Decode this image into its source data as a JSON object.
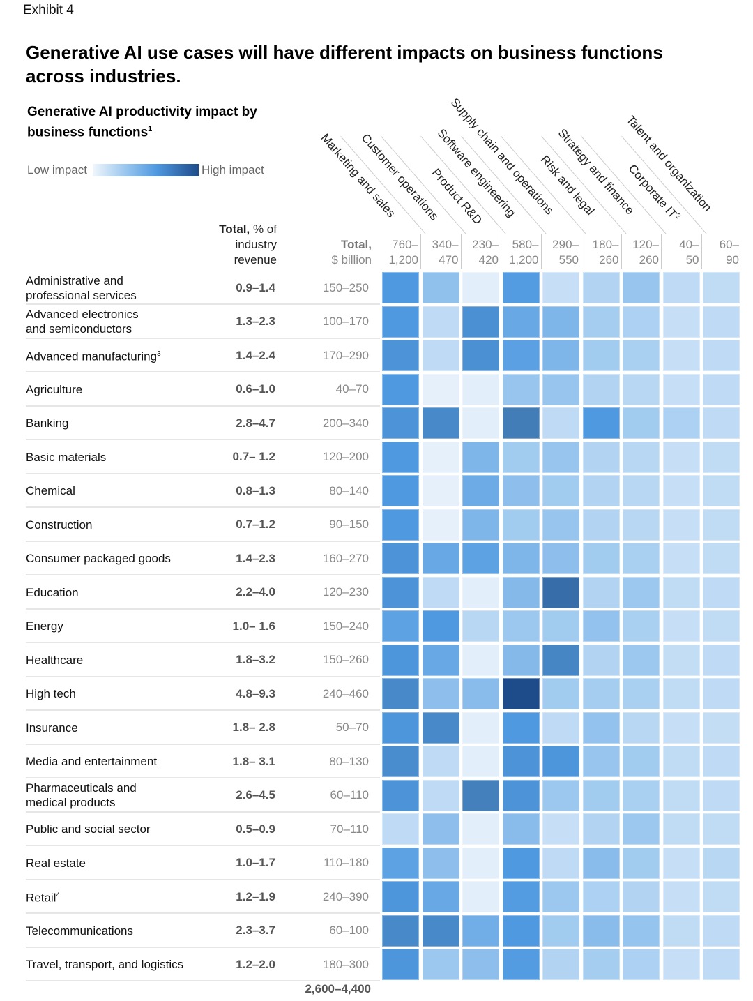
{
  "header": {
    "exhibit_label": "Exhibit 4",
    "title": "Generative AI use cases will have different impacts on business functions across industries.",
    "subtitle": "Generative AI productivity impact by business functions",
    "subtitle_footnote": "1"
  },
  "legend": {
    "low_label": "Low impact",
    "high_label": "High impact",
    "colors": [
      "#f0f6fc",
      "#9cc8ef",
      "#4f99e0",
      "#1e4c8a"
    ]
  },
  "columns_header": {
    "pct_bold": "Total,",
    "pct_rest": " % of",
    "pct_line2": "industry",
    "pct_line3": "revenue",
    "bil_bold": "Total,",
    "bil_line2": "$ billion"
  },
  "chart_data": {
    "type": "heatmap",
    "title": "Generative AI productivity impact by business functions",
    "color_scale": {
      "low": "Low impact",
      "high": "High impact"
    },
    "functions": [
      {
        "name": "Marketing and sales",
        "footnote": "",
        "total_low": "760–",
        "total_high": "1,200"
      },
      {
        "name": "Customer operations",
        "footnote": "",
        "total_low": "340–",
        "total_high": "470"
      },
      {
        "name": "Product R&D",
        "footnote": "",
        "total_low": "230–",
        "total_high": "420"
      },
      {
        "name": "Software engineering",
        "footnote": "",
        "total_low": "580–",
        "total_high": "1,200"
      },
      {
        "name": "Supply chain and operations",
        "footnote": "",
        "total_low": "290–",
        "total_high": "550"
      },
      {
        "name": "Risk and legal",
        "footnote": "",
        "total_low": "180–",
        "total_high": "260"
      },
      {
        "name": "Strategy and finance",
        "footnote": "",
        "total_low": "120–",
        "total_high": "260"
      },
      {
        "name": "Corporate IT",
        "footnote": "2",
        "total_low": "40–",
        "total_high": "50"
      },
      {
        "name": "Talent and organization",
        "footnote": "",
        "total_low": "60–",
        "total_high": "90"
      }
    ],
    "industries": [
      {
        "name": "Administrative and professional services",
        "lines": [
          "Administrative and",
          "professional services"
        ],
        "footnote": "",
        "pct_revenue": "0.9–1.4",
        "total_billion": "150–250",
        "impact": [
          0.62,
          0.35,
          0.05,
          0.6,
          0.15,
          0.22,
          0.32,
          0.18,
          0.17
        ]
      },
      {
        "name": "Advanced electronics and semiconductors",
        "lines": [
          "Advanced electronics",
          "and semiconductors"
        ],
        "footnote": "",
        "pct_revenue": "1.3–2.3",
        "total_billion": "100–170",
        "impact": [
          0.62,
          0.18,
          0.68,
          0.52,
          0.42,
          0.27,
          0.24,
          0.15,
          0.18
        ]
      },
      {
        "name": "Advanced manufacturing",
        "lines": [
          "Advanced manufacturing"
        ],
        "footnote": "3",
        "pct_revenue": "1.4–2.4",
        "total_billion": "170–290",
        "impact": [
          0.66,
          0.18,
          0.68,
          0.57,
          0.42,
          0.28,
          0.25,
          0.15,
          0.18
        ]
      },
      {
        "name": "Agriculture",
        "lines": [
          "Agriculture"
        ],
        "footnote": "",
        "pct_revenue": "0.6–1.0",
        "total_billion": "40–70",
        "impact": [
          0.62,
          0.04,
          0.05,
          0.32,
          0.32,
          0.22,
          0.2,
          0.15,
          0.18
        ]
      },
      {
        "name": "Banking",
        "lines": [
          "Banking"
        ],
        "footnote": "",
        "pct_revenue": "2.8–4.7",
        "total_billion": "200–340",
        "impact": [
          0.66,
          0.72,
          0.05,
          0.8,
          0.18,
          0.62,
          0.28,
          0.24,
          0.18
        ]
      },
      {
        "name": "Basic materials",
        "lines": [
          "Basic materials"
        ],
        "footnote": "",
        "pct_revenue": "0.7– 1.2",
        "total_billion": "120–200",
        "impact": [
          0.62,
          0.04,
          0.42,
          0.28,
          0.32,
          0.22,
          0.2,
          0.15,
          0.17
        ]
      },
      {
        "name": "Chemical",
        "lines": [
          "Chemical"
        ],
        "footnote": "",
        "pct_revenue": "0.8–1.3",
        "total_billion": "80–140",
        "impact": [
          0.62,
          0.04,
          0.5,
          0.36,
          0.28,
          0.22,
          0.2,
          0.15,
          0.17
        ]
      },
      {
        "name": "Construction",
        "lines": [
          "Construction"
        ],
        "footnote": "",
        "pct_revenue": "0.7–1.2",
        "total_billion": "90–150",
        "impact": [
          0.62,
          0.04,
          0.42,
          0.28,
          0.32,
          0.22,
          0.2,
          0.15,
          0.17
        ]
      },
      {
        "name": "Consumer packaged goods",
        "lines": [
          "Consumer packaged goods"
        ],
        "footnote": "",
        "pct_revenue": "1.4–2.3",
        "total_billion": "160–270",
        "impact": [
          0.66,
          0.52,
          0.56,
          0.42,
          0.36,
          0.28,
          0.25,
          0.15,
          0.17
        ]
      },
      {
        "name": "Education",
        "lines": [
          "Education"
        ],
        "footnote": "",
        "pct_revenue": "2.2–4.0",
        "total_billion": "120–230",
        "impact": [
          0.66,
          0.18,
          0.05,
          0.4,
          0.86,
          0.22,
          0.3,
          0.17,
          0.18
        ]
      },
      {
        "name": "Energy",
        "lines": [
          "Energy"
        ],
        "footnote": "",
        "pct_revenue": "1.0– 1.6",
        "total_billion": "150–240",
        "impact": [
          0.56,
          0.62,
          0.2,
          0.3,
          0.28,
          0.34,
          0.25,
          0.15,
          0.17
        ]
      },
      {
        "name": "Healthcare",
        "lines": [
          "Healthcare"
        ],
        "footnote": "",
        "pct_revenue": "1.8–3.2",
        "total_billion": "150–260",
        "impact": [
          0.64,
          0.52,
          0.05,
          0.4,
          0.74,
          0.22,
          0.3,
          0.16,
          0.18
        ]
      },
      {
        "name": "High tech",
        "lines": [
          "High tech"
        ],
        "footnote": "",
        "pct_revenue": "4.8–9.3",
        "total_billion": "240–460",
        "impact": [
          0.72,
          0.36,
          0.38,
          1.0,
          0.28,
          0.27,
          0.25,
          0.17,
          0.18
        ]
      },
      {
        "name": "Insurance",
        "lines": [
          "Insurance"
        ],
        "footnote": "",
        "pct_revenue": "1.8– 2.8",
        "total_billion": "50–70",
        "impact": [
          0.64,
          0.72,
          0.05,
          0.62,
          0.18,
          0.34,
          0.2,
          0.15,
          0.16
        ]
      },
      {
        "name": "Media and entertainment",
        "lines": [
          "Media and entertainment"
        ],
        "footnote": "",
        "pct_revenue": "1.8– 3.1",
        "total_billion": "80–130",
        "impact": [
          0.7,
          0.18,
          0.05,
          0.66,
          0.64,
          0.32,
          0.28,
          0.17,
          0.18
        ]
      },
      {
        "name": "Pharmaceuticals and medical products",
        "lines": [
          "Pharmaceuticals and",
          "medical products"
        ],
        "footnote": "",
        "pct_revenue": "2.6–4.5",
        "total_billion": "60–110",
        "impact": [
          0.66,
          0.18,
          0.78,
          0.66,
          0.3,
          0.28,
          0.25,
          0.17,
          0.18
        ]
      },
      {
        "name": "Public and social sector",
        "lines": [
          "Public and social sector"
        ],
        "footnote": "",
        "pct_revenue": "0.5–0.9",
        "total_billion": "70–110",
        "impact": [
          0.18,
          0.36,
          0.05,
          0.38,
          0.15,
          0.22,
          0.3,
          0.17,
          0.17
        ]
      },
      {
        "name": "Real estate",
        "lines": [
          "Real estate"
        ],
        "footnote": "",
        "pct_revenue": "1.0–1.7",
        "total_billion": "110–180",
        "impact": [
          0.56,
          0.36,
          0.05,
          0.62,
          0.18,
          0.38,
          0.28,
          0.15,
          0.2
        ]
      },
      {
        "name": "Retail",
        "lines": [
          "Retail"
        ],
        "footnote": "4",
        "pct_revenue": "1.2–1.9",
        "total_billion": "240–390",
        "impact": [
          0.64,
          0.52,
          0.05,
          0.6,
          0.3,
          0.24,
          0.22,
          0.15,
          0.17
        ]
      },
      {
        "name": "Telecommunications",
        "lines": [
          "Telecommunications"
        ],
        "footnote": "",
        "pct_revenue": "2.3–3.7",
        "total_billion": "60–100",
        "impact": [
          0.72,
          0.72,
          0.48,
          0.62,
          0.28,
          0.38,
          0.33,
          0.17,
          0.18
        ]
      },
      {
        "name": "Travel, transport, and logistics",
        "lines": [
          "Travel, transport, and logistics"
        ],
        "footnote": "",
        "pct_revenue": "1.2–2.0",
        "total_billion": "180–300",
        "impact": [
          0.64,
          0.3,
          0.36,
          0.6,
          0.22,
          0.27,
          0.24,
          0.15,
          0.18
        ]
      }
    ],
    "grand_total_billion": "2,600–4,400"
  }
}
